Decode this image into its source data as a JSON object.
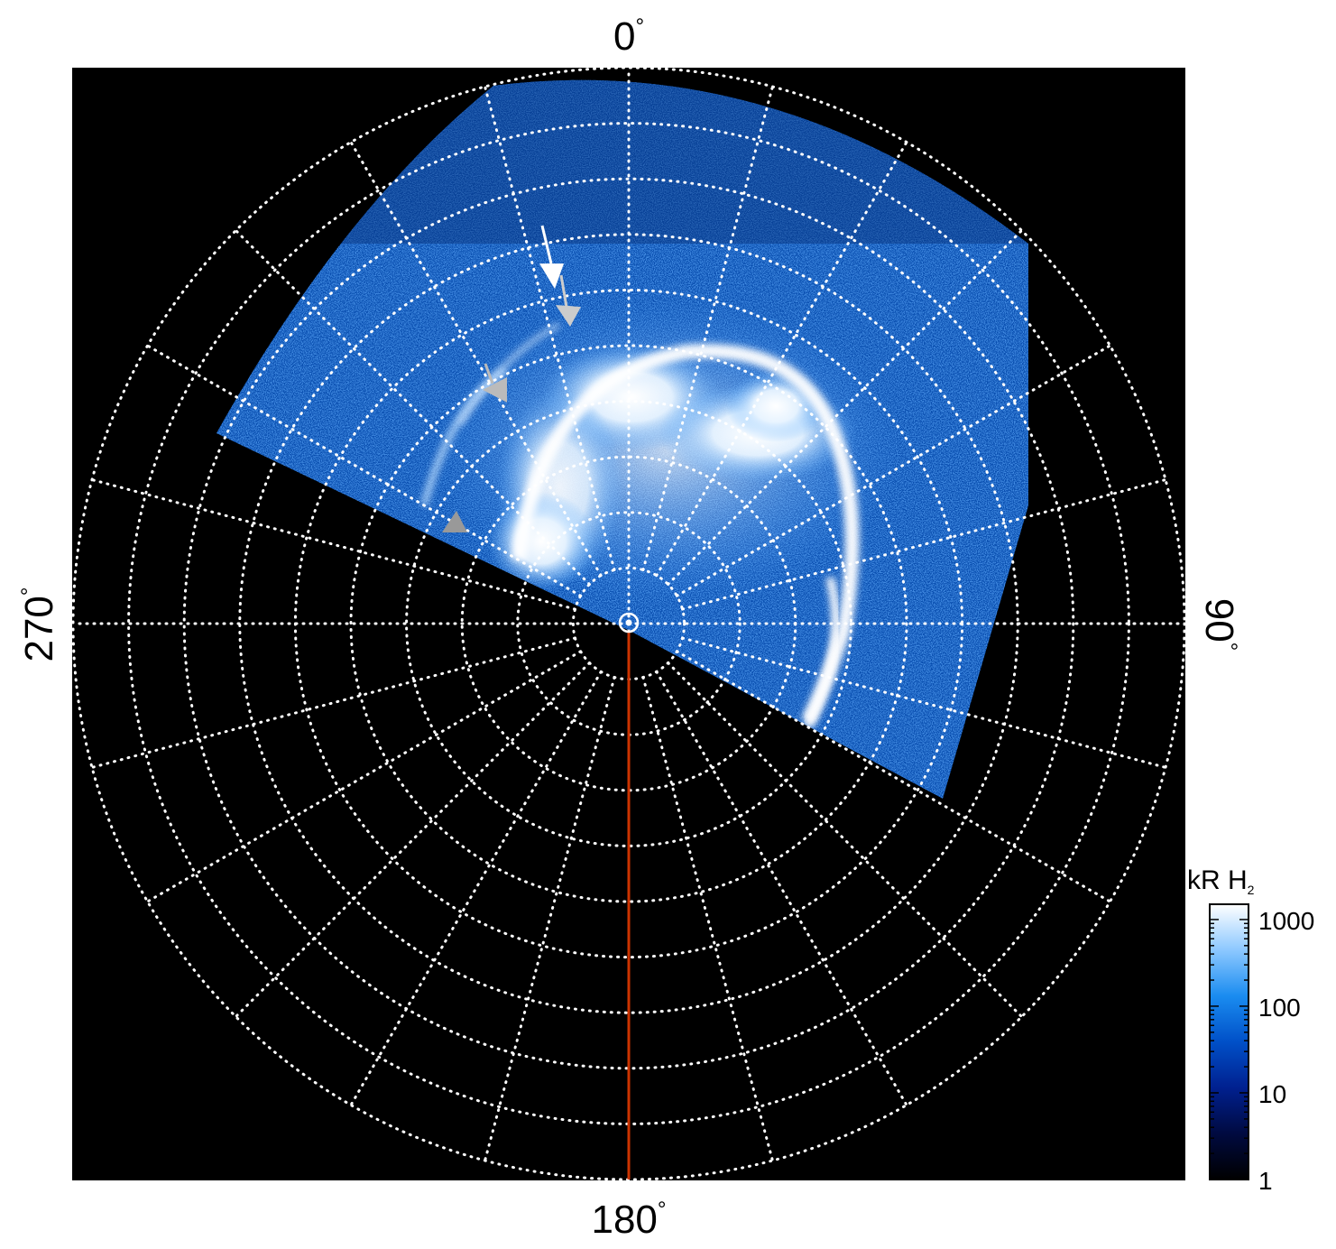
{
  "chart_data": {
    "type": "heatmap",
    "projection": "polar",
    "title": "",
    "angle_labels": [
      {
        "angle": 0,
        "text": "0",
        "unit": "°"
      },
      {
        "angle": 90,
        "text": "90",
        "unit": "°"
      },
      {
        "angle": 180,
        "text": "180",
        "unit": "°"
      },
      {
        "angle": 270,
        "text": "270",
        "unit": "°"
      }
    ],
    "grid": {
      "meridian_step_deg": 15,
      "latitude_circle_count": 10,
      "style": "dotted",
      "color": "#ffffff"
    },
    "reference_meridian_deg": 180,
    "reference_meridian_color": "#cc3300",
    "background_color": "#000000",
    "colorbar": {
      "title": "kR H",
      "title_subscript": "2",
      "scale": "log",
      "range": [
        1,
        1500
      ],
      "tick_labels": [
        "1",
        "10",
        "100",
        "1000"
      ],
      "tick_values": [
        1,
        10,
        100,
        1000
      ],
      "colors": [
        "#000000",
        "#000a40",
        "#00208f",
        "#0050c8",
        "#1a8cf0",
        "#8cc8ff",
        "#ffffff"
      ]
    },
    "annotations": [
      {
        "type": "arrow",
        "color": "#ffffff",
        "count": 1
      },
      {
        "type": "arrow",
        "color": "#c0c0c0",
        "count": 2
      },
      {
        "type": "triangle-marker",
        "color": "#a0a0a0",
        "count": 1
      }
    ]
  }
}
